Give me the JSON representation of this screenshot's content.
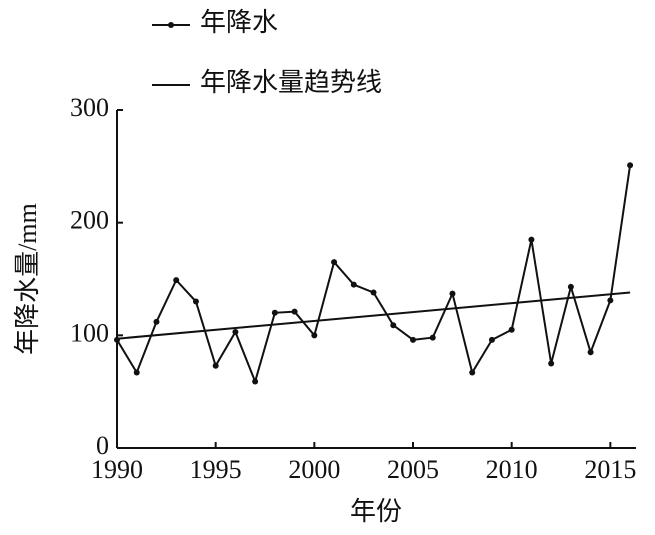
{
  "chart_data": {
    "type": "line",
    "x": [
      1990,
      1991,
      1992,
      1993,
      1994,
      1995,
      1996,
      1997,
      1998,
      1999,
      2000,
      2001,
      2002,
      2003,
      2004,
      2005,
      2006,
      2007,
      2008,
      2009,
      2010,
      2011,
      2012,
      2013,
      2014,
      2015,
      2016
    ],
    "series": [
      {
        "name": "年降水",
        "color": "#111111",
        "markers": true,
        "values": [
          96,
          67,
          112,
          149,
          130,
          73,
          103,
          59,
          120,
          121,
          100,
          165,
          145,
          138,
          109,
          96,
          98,
          137,
          67,
          96,
          105,
          185,
          75,
          143,
          85,
          131,
          251
        ]
      },
      {
        "name": "年降水量趋势线",
        "color": "#111111",
        "markers": false,
        "x": [
          1990,
          2016
        ],
        "values": [
          97,
          138
        ]
      }
    ],
    "xlabel": "年份",
    "ylabel": "年降水量/mm",
    "xlim": [
      1990,
      2016.3
    ],
    "xticks": [
      1990,
      1995,
      2000,
      2005,
      2010,
      2015
    ],
    "ylim": [
      0,
      300
    ],
    "yticks": [
      0,
      100,
      200,
      300
    ]
  }
}
